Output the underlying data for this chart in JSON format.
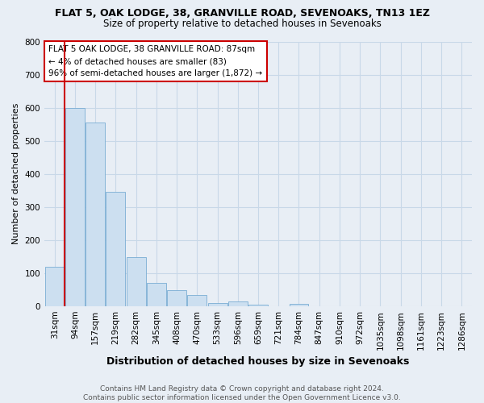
{
  "title": "FLAT 5, OAK LODGE, 38, GRANVILLE ROAD, SEVENOAKS, TN13 1EZ",
  "subtitle": "Size of property relative to detached houses in Sevenoaks",
  "xlabel": "Distribution of detached houses by size in Sevenoaks",
  "ylabel": "Number of detached properties",
  "categories": [
    "31sqm",
    "94sqm",
    "157sqm",
    "219sqm",
    "282sqm",
    "345sqm",
    "408sqm",
    "470sqm",
    "533sqm",
    "596sqm",
    "659sqm",
    "721sqm",
    "784sqm",
    "847sqm",
    "910sqm",
    "972sqm",
    "1035sqm",
    "1098sqm",
    "1161sqm",
    "1223sqm",
    "1286sqm"
  ],
  "values": [
    120,
    600,
    555,
    345,
    148,
    70,
    48,
    35,
    10,
    15,
    5,
    0,
    8,
    0,
    0,
    0,
    0,
    0,
    0,
    0,
    0
  ],
  "bar_color": "#ccdff0",
  "bar_edge_color": "#7aadd4",
  "marker_color": "#cc0000",
  "annotation_lines": [
    "FLAT 5 OAK LODGE, 38 GRANVILLE ROAD: 87sqm",
    "← 4% of detached houses are smaller (83)",
    "96% of semi-detached houses are larger (1,872) →"
  ],
  "annotation_box_edgecolor": "#cc0000",
  "annotation_box_facecolor": "#ffffff",
  "bg_color": "#e8eef5",
  "plot_bg_color": "#e8eef5",
  "grid_color": "#c8d8e8",
  "ylim_max": 800,
  "yticks": [
    0,
    100,
    200,
    300,
    400,
    500,
    600,
    700,
    800
  ],
  "footer_line1": "Contains HM Land Registry data © Crown copyright and database right 2024.",
  "footer_line2": "Contains public sector information licensed under the Open Government Licence v3.0.",
  "title_fontsize": 9,
  "subtitle_fontsize": 8.5,
  "xlabel_fontsize": 9,
  "ylabel_fontsize": 8,
  "tick_fontsize": 7.5,
  "footer_fontsize": 6.5,
  "ann_fontsize": 7.5
}
